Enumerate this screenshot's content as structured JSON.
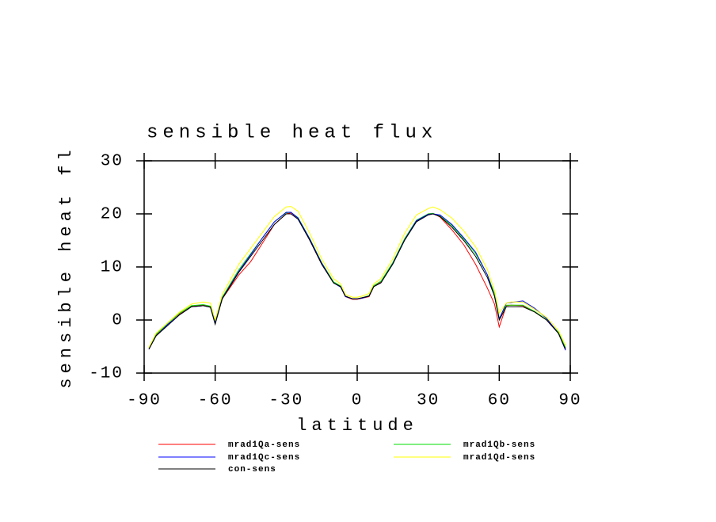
{
  "chart_data": {
    "type": "line",
    "title": "sensible heat flux",
    "x_label": "latitude",
    "y_label": "sensible heat fl",
    "x": [
      -88,
      -85,
      -80,
      -75,
      -70,
      -65,
      -62,
      -60,
      -57,
      -50,
      -45,
      -40,
      -35,
      -30,
      -28,
      -25,
      -20,
      -15,
      -10,
      -7,
      -5,
      -2,
      0,
      2,
      5,
      7,
      10,
      15,
      20,
      25,
      30,
      32,
      35,
      40,
      45,
      50,
      55,
      58,
      60,
      63,
      65,
      70,
      75,
      80,
      85,
      88
    ],
    "series": [
      {
        "name": "mrad1Qa-sens",
        "color": "#ff0000",
        "values": [
          -5.5,
          -2.8,
          -0.5,
          1.2,
          2.6,
          2.8,
          2.5,
          -0.5,
          4,
          8.5,
          11,
          14.5,
          18,
          20,
          20.2,
          19.2,
          15,
          10.5,
          7,
          6.3,
          4.4,
          3.9,
          3.9,
          4.1,
          4.4,
          6.3,
          7.2,
          10.7,
          15.2,
          18.6,
          20,
          20.1,
          19.4,
          17,
          14.2,
          10.5,
          6,
          3,
          -1.3,
          2.7,
          2.8,
          2.7,
          1.5,
          0,
          -2.5,
          -5.3
        ]
      },
      {
        "name": "mrad1Qb-sens",
        "color": "#00dd00",
        "values": [
          -5.2,
          -2.7,
          -0.6,
          1.3,
          2.7,
          2.9,
          2.6,
          -0.5,
          4.3,
          9.5,
          12.5,
          15.5,
          18.5,
          20.2,
          20.3,
          19.3,
          15.3,
          10.8,
          7.2,
          6.4,
          4.5,
          4,
          4,
          4.2,
          4.6,
          6.5,
          7.3,
          10.8,
          15.3,
          18.8,
          20,
          20.1,
          19.6,
          17.8,
          15.3,
          12.5,
          8.5,
          5,
          0.3,
          2.8,
          2.8,
          2.8,
          1.6,
          0.1,
          -2.3,
          -5.2
        ]
      },
      {
        "name": "mrad1Qc-sens",
        "color": "#0000ff",
        "values": [
          -5.5,
          -3,
          -0.8,
          1,
          2.5,
          2.7,
          2.4,
          -0.6,
          4.1,
          9.2,
          12.3,
          15.5,
          18.5,
          20.3,
          20.3,
          19.2,
          15.2,
          10.7,
          7,
          6.2,
          4.4,
          4,
          4,
          4.1,
          4.5,
          6.3,
          7,
          10.6,
          15.1,
          18.7,
          19.9,
          20,
          19.8,
          18,
          15.5,
          12.8,
          8.5,
          4.5,
          0.2,
          3.2,
          3.3,
          3.6,
          2.2,
          0.3,
          -2.5,
          -5.7
        ]
      },
      {
        "name": "mrad1Qd-sens",
        "color": "#ffff00",
        "values": [
          -5.2,
          -2.5,
          -0.5,
          1.5,
          3,
          3.4,
          3.2,
          0,
          4.8,
          10.5,
          13.5,
          16.5,
          19.5,
          21.3,
          21.4,
          20.5,
          16.3,
          11.5,
          7.8,
          6.8,
          4.8,
          4.3,
          4.3,
          4.5,
          5,
          6.8,
          7.8,
          11.5,
          16.3,
          19.8,
          21,
          21.3,
          20.8,
          19.2,
          16.8,
          13.8,
          9.5,
          5.5,
          1.3,
          3.2,
          3.4,
          3.4,
          2,
          0.5,
          -2,
          -4.8
        ]
      },
      {
        "name": "con-sens",
        "color": "#000000",
        "values": [
          -5.5,
          -3,
          -1,
          1,
          2.5,
          2.7,
          2.4,
          -0.8,
          4,
          9,
          12,
          15,
          18,
          20,
          20,
          19,
          15,
          10.5,
          7,
          6.3,
          4.5,
          4,
          4,
          4.2,
          4.5,
          6.3,
          7,
          10.5,
          15,
          18.5,
          19.8,
          20,
          19.5,
          17.5,
          15,
          12,
          8,
          4.5,
          0,
          2.5,
          2.5,
          2.5,
          1.5,
          0,
          -2.5,
          -5.5
        ]
      }
    ],
    "xlim": [
      -90,
      90
    ],
    "xticks": [
      -90,
      -60,
      -30,
      0,
      30,
      60,
      90
    ],
    "ylim": [
      -10,
      30
    ],
    "yticks": [
      -10,
      0,
      10,
      20,
      30
    ]
  }
}
